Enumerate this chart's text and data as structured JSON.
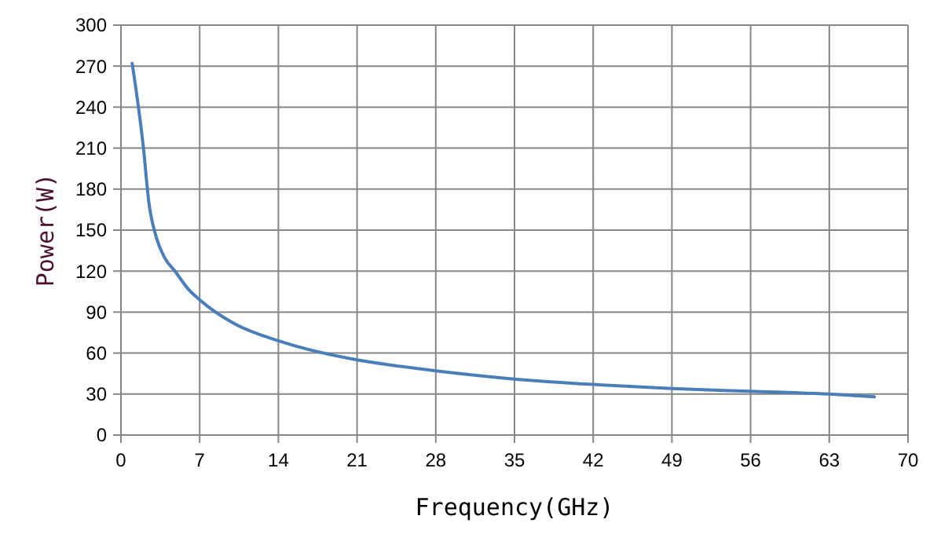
{
  "chart_data": {
    "type": "line",
    "xlabel": "Frequency(GHz)",
    "ylabel": "Power(W)",
    "x": [
      1,
      2,
      2.47,
      3.17,
      3.87,
      4.8,
      5.97,
      7,
      10.2,
      14,
      21,
      24.2,
      28,
      35,
      42,
      49,
      56,
      63,
      67
    ],
    "series": [
      {
        "color": "#4a7ebb",
        "values": [
          272,
          210,
          171,
          144,
          130,
          120,
          107,
          99,
          81,
          69,
          55,
          51,
          47,
          41,
          37,
          34,
          32,
          30,
          28
        ]
      }
    ],
    "xlim": [
      0,
      70
    ],
    "xticks": [
      0,
      7,
      14,
      21,
      28,
      35,
      42,
      49,
      56,
      63,
      70
    ],
    "ylim": [
      0,
      300
    ],
    "yticks": [
      0,
      30,
      60,
      90,
      120,
      150,
      180,
      210,
      240,
      270,
      300
    ],
    "grid": true,
    "marker": "none",
    "line_style": "solid"
  }
}
